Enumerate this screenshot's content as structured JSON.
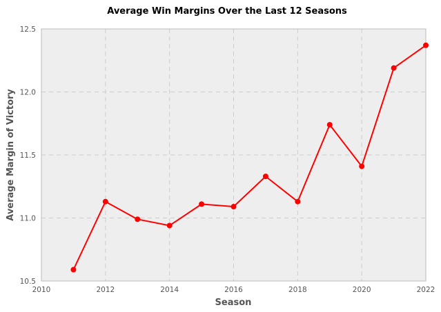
{
  "chart_data": {
    "type": "line",
    "title": "Average Win Margins Over the Last 12 Seasons",
    "xlabel": "Season",
    "ylabel": "Average Margin of Victory",
    "xlim": [
      2010,
      2022
    ],
    "ylim": [
      10.5,
      12.5
    ],
    "xticks": [
      2010,
      2012,
      2014,
      2016,
      2018,
      2020,
      2022
    ],
    "yticks": [
      10.5,
      11.0,
      11.5,
      12.0,
      12.5
    ],
    "ytick_labels": [
      "10.5",
      "11.0",
      "11.5",
      "12.0",
      "12.5"
    ],
    "grid": true,
    "series": [
      {
        "color": "#ff0000",
        "x": [
          2011,
          2012,
          2013,
          2014,
          2015,
          2016,
          2017,
          2018,
          2019,
          2020,
          2021,
          2022
        ],
        "y": [
          10.59,
          11.13,
          10.99,
          10.94,
          11.11,
          11.09,
          11.33,
          11.13,
          11.74,
          11.41,
          12.19,
          12.37
        ]
      }
    ]
  },
  "colors": {
    "plot_background": "#eeeeee",
    "grid": "#cccccc",
    "frame": "#bbbbbb"
  }
}
